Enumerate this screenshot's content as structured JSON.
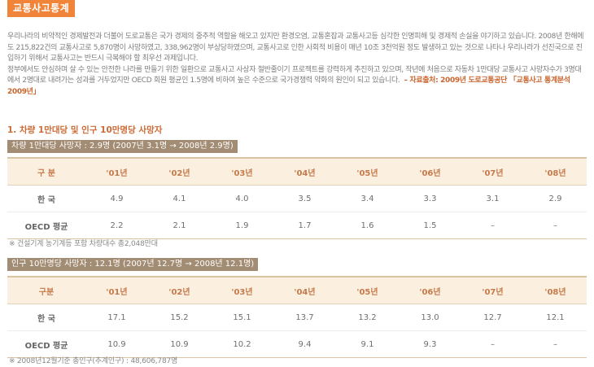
{
  "page_title": "교통사고통계",
  "intro": {
    "paragraph1": "우리나라의 비약적인 경제발전과 더불어 도로교통은 국가 경제의 중추적 역할을 해오고 있지만 환경오염, 교통혼잡과 교통사고등 심각한 인명피해 및 경제적 손실을 야기하고 있습니다. 2008년 한해에도 215,822건의 교통사고로 5,870명이 사망하였고, 338,962명이 부상당하였으며, 교통사고로 인한 사회적 비용이 매년 10조 3천억원 정도 발생하고 있는 것으로 나타나 우리나라가 선진국으로 진입하기 위해서 교통사고는 반드시 극복해야 할 최우선 과제입니다.",
    "paragraph2": "정부에서도 안심하며 살 수 있는 안전한 나라를 만들기 위한 일환으로 교통사고 사상자 절반줄이기 프로젝트를 강력하게 추진하고 있으며, 작년에 처음으로 자동차 1만대당 교통사고 사망자수가 3명대에서 2명대로 내려가는 성과를 거두었지만 OECD 회원 평균인 1.5명에 비하여 높은 수준으로 국가경쟁력 약화의 원인이 되고 있습니다.",
    "source": "– 자료출처: 2009년 도로교통공단 「교통사고 통계분석 2009년」"
  },
  "section_heading": "1. 차량 1만대당 및 인구 10만명당 사망자",
  "table1": {
    "label": "차량 1만대당 사망자 : 2.9명 (2007년 3.1명 → 2008년 2.9명)",
    "headers": [
      "구 분",
      "'01년",
      "'02년",
      "'03년",
      "'04년",
      "'05년",
      "'06년",
      "'07년",
      "'08년"
    ],
    "rows": [
      [
        "한 국",
        "4.9",
        "4.1",
        "4.0",
        "3.5",
        "3.4",
        "3.3",
        "3.1",
        "2.9"
      ],
      [
        "OECD 평균",
        "2.2",
        "2.1",
        "1.9",
        "1.7",
        "1.6",
        "1.5",
        "–",
        "–"
      ]
    ],
    "note": "※ 건설기계 농기계등 포함 차량대수 총2,048만대"
  },
  "table2": {
    "label": "인구 10만명당 사망자 : 12.1명 (2007년 12.7명 → 2008년 12.1명)",
    "headers": [
      "구분",
      "'01년",
      "'02년",
      "'03년",
      "'04년",
      "'05년",
      "'06년",
      "'07년",
      "'08년"
    ],
    "rows": [
      [
        "한 국",
        "17.1",
        "15.2",
        "15.1",
        "13.7",
        "13.2",
        "13.0",
        "12.7",
        "12.1"
      ],
      [
        "OECD 평균",
        "10.9",
        "10.9",
        "10.2",
        "9.4",
        "9.1",
        "9.3",
        "–",
        "–"
      ]
    ],
    "note": "※ 2008년12월기준 총인구(추계인구) : 48,606,787명"
  },
  "colors": {
    "accent_orange": "#f0853a",
    "label_bar_brown": "#a38c74",
    "header_bg": "#fbefe0",
    "header_text": "#c67a4a"
  }
}
